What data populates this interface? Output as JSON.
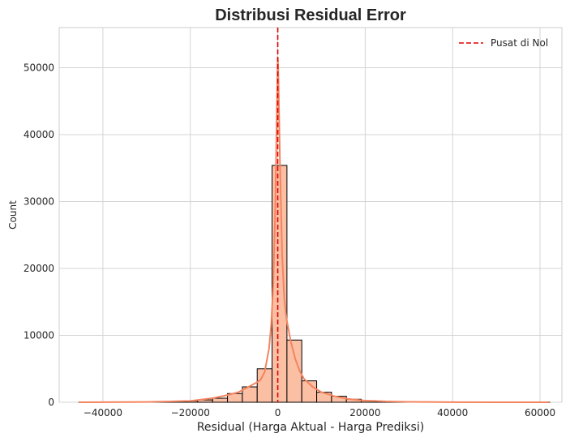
{
  "chart_data": {
    "type": "bar",
    "title": "Distribusi Residual Error",
    "xlabel": "Residual (Harga Aktual - Harga Prediksi)",
    "ylabel": "Count",
    "xlim": [
      -50000,
      65000
    ],
    "ylim": [
      0,
      56000
    ],
    "xticks": [
      -40000,
      -20000,
      0,
      20000,
      40000,
      60000
    ],
    "xtick_labels": [
      "−40000",
      "−20000",
      "0",
      "20000",
      "40000",
      "60000"
    ],
    "yticks": [
      0,
      10000,
      20000,
      30000,
      40000,
      50000
    ],
    "ytick_labels": [
      "0",
      "10000",
      "20000",
      "30000",
      "40000",
      "50000"
    ],
    "grid": true,
    "histogram": {
      "bin_edges": [
        -45500,
        -42100,
        -38700,
        -35300,
        -31900,
        -28500,
        -25100,
        -21700,
        -18300,
        -14900,
        -11500,
        -8100,
        -4700,
        -1300,
        2100,
        5500,
        8900,
        12300,
        15700,
        19100,
        22500,
        25900,
        29300,
        32700,
        36100,
        39500,
        42900,
        46300,
        49700,
        53100,
        56500,
        59900,
        62200
      ],
      "counts": [
        5,
        10,
        15,
        20,
        30,
        50,
        100,
        200,
        350,
        600,
        1300,
        2300,
        5000,
        35400,
        9300,
        3200,
        1500,
        900,
        450,
        250,
        150,
        100,
        60,
        40,
        25,
        15,
        10,
        8,
        5,
        4,
        3,
        2
      ],
      "fill_color": "#fbbfa4",
      "edge_color": "#000000"
    },
    "kde": {
      "x": [
        -45500,
        -30000,
        -20000,
        -15000,
        -12000,
        -9000,
        -7000,
        -5000,
        -4000,
        -3000,
        -2000,
        -1500,
        -1000,
        -600,
        -300,
        -150,
        0,
        100,
        250,
        500,
        1000,
        1500,
        2000,
        3000,
        4000,
        5000,
        6000,
        8000,
        10000,
        13000,
        16000,
        20000,
        25000,
        30000,
        40000,
        50000,
        62000
      ],
      "y": [
        0,
        50,
        200,
        600,
        1000,
        1500,
        2200,
        2900,
        3300,
        4500,
        8000,
        11500,
        18000,
        28000,
        40000,
        46000,
        51500,
        50000,
        45000,
        36000,
        22000,
        15500,
        12500,
        9000,
        6500,
        4700,
        3500,
        2300,
        1500,
        900,
        500,
        250,
        120,
        60,
        20,
        5,
        0
      ],
      "color": "#f4845f"
    },
    "reference_line": {
      "x": 0,
      "label": "Pusat di Nol",
      "color": "#e00000",
      "style": "dashed"
    },
    "legend": {
      "placement": "top-right",
      "entries": [
        "Pusat di Nol"
      ]
    }
  }
}
